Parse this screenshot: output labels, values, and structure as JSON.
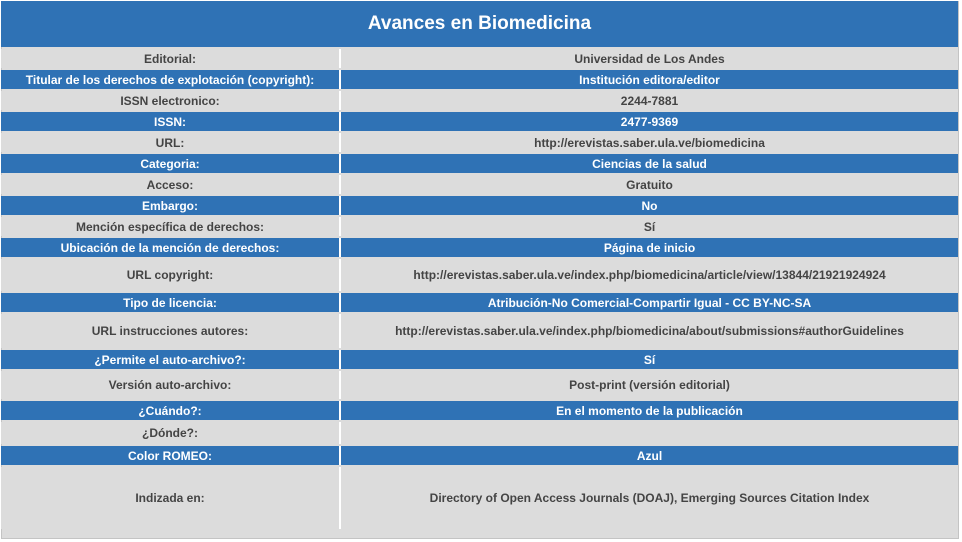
{
  "page": {
    "title": "Avances en Biomedicina"
  },
  "rows": [
    {
      "label": "Editorial:",
      "value": "Universidad de Los Andes",
      "style": "grey"
    },
    {
      "label": "Titular de los derechos de explotación (copyright):",
      "value": "Institución editora/editor",
      "style": "blue"
    },
    {
      "label": "ISSN electronico:",
      "value": "2244-7881",
      "style": "grey"
    },
    {
      "label": "ISSN:",
      "value": "2477-9369",
      "style": "blue"
    },
    {
      "label": "URL:",
      "value": "http://erevistas.saber.ula.ve/biomedicina",
      "style": "grey"
    },
    {
      "label": "Categoria:",
      "value": "Ciencias de la salud",
      "style": "blue"
    },
    {
      "label": "Acceso:",
      "value": "Gratuito",
      "style": "grey"
    },
    {
      "label": "Embargo:",
      "value": "No",
      "style": "blue"
    },
    {
      "label": "Mención específica de derechos:",
      "value": "Sí",
      "style": "grey"
    },
    {
      "label": "Ubicación de la mención de derechos:",
      "value": "Página de inicio",
      "style": "blue"
    },
    {
      "label": "URL copyright:",
      "value": "http://erevistas.saber.ula.ve/index.php/biomedicina/article/view/13844/21921924924",
      "style": "grey"
    },
    {
      "label": "Tipo de licencia:",
      "value": "Atribución-No Comercial-Compartir Igual - CC BY-NC-SA",
      "style": "blue"
    },
    {
      "label": "URL instrucciones autores:",
      "value": "http://erevistas.saber.ula.ve/index.php/biomedicina/about/submissions#authorGuidelines",
      "style": "grey"
    },
    {
      "label": "¿Permite el auto-archivo?:",
      "value": "Sí",
      "style": "blue"
    },
    {
      "label": "Versión auto-archivo:",
      "value": "Post-print (versión editorial)",
      "style": "grey"
    },
    {
      "label": "¿Cuándo?:",
      "value": "En el momento de la publicación",
      "style": "blue"
    },
    {
      "label": "¿Dónde?:",
      "value": "",
      "style": "grey"
    },
    {
      "label": "Color ROMEO:",
      "value": "Azul",
      "style": "blue"
    },
    {
      "label": "Indizada en:",
      "value": "Directory of Open Access Journals (DOAJ), Emerging Sources Citation Index",
      "style": "grey"
    }
  ],
  "colors": {
    "header_blue": "#2f72b5",
    "row_grey": "#dcdcdc",
    "text_dark": "#444444"
  }
}
